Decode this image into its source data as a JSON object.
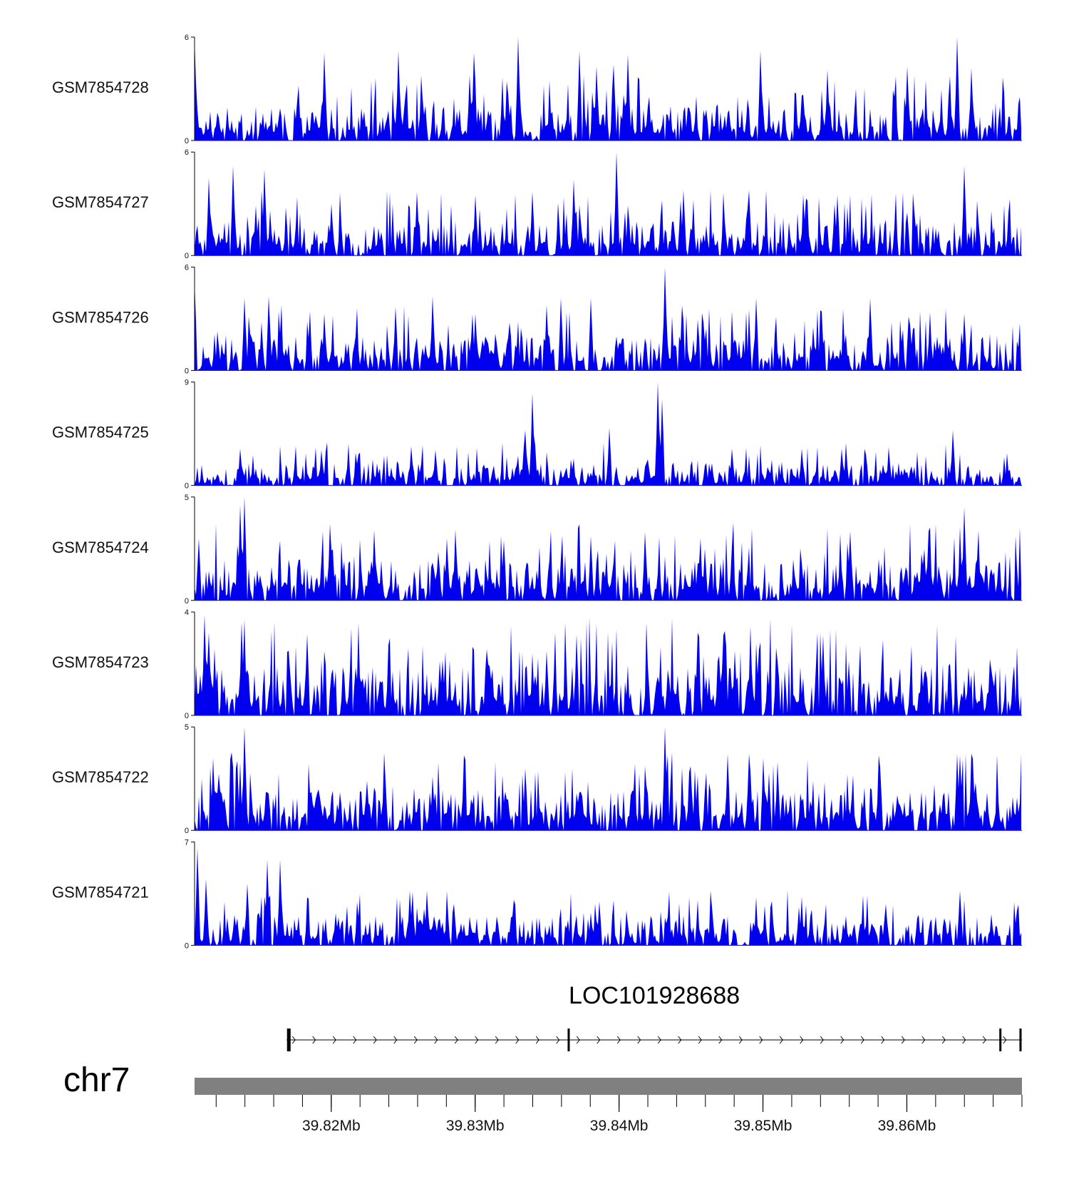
{
  "chart_data": {
    "type": "area",
    "title": "",
    "fill_color": "#0000ee",
    "region": {
      "chromosome": "chr7",
      "start_mb": 39.8105,
      "end_mb": 39.868
    },
    "xlabel": "",
    "xticks": [
      {
        "mb": 39.82,
        "label": "39.82Mb"
      },
      {
        "mb": 39.83,
        "label": "39.83Mb"
      },
      {
        "mb": 39.84,
        "label": "39.84Mb"
      },
      {
        "mb": 39.85,
        "label": "39.85Mb"
      },
      {
        "mb": 39.86,
        "label": "39.86Mb"
      }
    ],
    "minor_tick_step_mb": 0.002,
    "tracks": [
      {
        "name": "GSM7854728",
        "ymax": 6,
        "ymax_label": "6",
        "ymin_label": "0",
        "seed": 11,
        "peaks": [
          [
            39.8105,
            6
          ],
          [
            39.8195,
            5.1
          ],
          [
            39.8247,
            5.2
          ],
          [
            39.8299,
            5.1
          ],
          [
            39.8296,
            3.8
          ],
          [
            39.833,
            6
          ],
          [
            39.8372,
            5.2
          ],
          [
            39.8384,
            4.3
          ],
          [
            39.8406,
            5
          ],
          [
            39.8396,
            4.4
          ],
          [
            39.8498,
            5.2
          ],
          [
            39.8545,
            4.1
          ],
          [
            39.86,
            4.3
          ],
          [
            39.8635,
            6
          ],
          [
            39.8645,
            4.2
          ]
        ]
      },
      {
        "name": "GSM7854727",
        "ymax": 6,
        "ymax_label": "6",
        "ymin_label": "0",
        "seed": 23,
        "peaks": [
          [
            39.8115,
            4.5
          ],
          [
            39.8132,
            5.2
          ],
          [
            39.8154,
            5
          ],
          [
            39.82,
            3
          ],
          [
            39.826,
            3.7
          ],
          [
            39.83,
            3.5
          ],
          [
            39.834,
            3.7
          ],
          [
            39.8368,
            4.4
          ],
          [
            39.8398,
            6
          ],
          [
            39.8445,
            3.8
          ],
          [
            39.849,
            3.7
          ],
          [
            39.855,
            3
          ],
          [
            39.86,
            2.5
          ],
          [
            39.864,
            5.2
          ]
        ]
      },
      {
        "name": "GSM7854726",
        "ymax": 6,
        "ymax_label": "6",
        "ymin_label": "0",
        "seed": 37,
        "peaks": [
          [
            39.8105,
            5.2
          ],
          [
            39.814,
            4.2
          ],
          [
            39.8157,
            4.3
          ],
          [
            39.8195,
            3.3
          ],
          [
            39.8245,
            3.7
          ],
          [
            39.827,
            4.3
          ],
          [
            39.83,
            3.3
          ],
          [
            39.835,
            3.8
          ],
          [
            39.836,
            4.2
          ],
          [
            39.838,
            4.2
          ],
          [
            39.8432,
            6
          ],
          [
            39.8495,
            4.2
          ],
          [
            39.8535,
            2.5
          ],
          [
            39.8575,
            4.2
          ],
          [
            39.864,
            3.3
          ]
        ]
      },
      {
        "name": "GSM7854725",
        "ymax": 9,
        "ymax_label": "9",
        "ymin_label": "0",
        "seed": 53,
        "peaks": [
          [
            39.8137,
            3.2
          ],
          [
            39.8193,
            3.1
          ],
          [
            39.8256,
            3.4
          ],
          [
            39.8272,
            3.1
          ],
          [
            39.8335,
            4.8
          ],
          [
            39.834,
            8
          ],
          [
            39.8393,
            5
          ],
          [
            39.8427,
            9
          ],
          [
            39.843,
            7.5
          ],
          [
            39.8478,
            3.2
          ],
          [
            39.8527,
            3.2
          ],
          [
            39.8555,
            3.2
          ],
          [
            39.8632,
            4.8
          ]
        ]
      },
      {
        "name": "GSM7854724",
        "ymax": 5,
        "ymax_label": "5",
        "ymin_label": "0",
        "seed": 71,
        "peaks": [
          [
            39.8137,
            4.6
          ],
          [
            39.814,
            5
          ],
          [
            39.8199,
            3.7
          ],
          [
            39.823,
            3.4
          ],
          [
            39.828,
            3
          ],
          [
            39.832,
            2.9
          ],
          [
            39.838,
            3.1
          ],
          [
            39.8418,
            3.3
          ],
          [
            39.846,
            2.5
          ],
          [
            39.8478,
            2.6
          ],
          [
            39.858,
            2
          ],
          [
            39.864,
            4.5
          ]
        ]
      },
      {
        "name": "GSM7854723",
        "ymax": 4,
        "ymax_label": "4",
        "ymin_label": "0",
        "seed": 89,
        "peaks": [
          [
            39.8112,
            3.9
          ],
          [
            39.8115,
            3.2
          ],
          [
            39.8138,
            3.6
          ],
          [
            39.817,
            2.5
          ],
          [
            39.824,
            2.2
          ],
          [
            39.8275,
            2.1
          ],
          [
            39.831,
            1.9
          ],
          [
            39.835,
            2.5
          ],
          [
            39.842,
            1.9
          ],
          [
            39.847,
            2.3
          ],
          [
            39.848,
            2.5
          ],
          [
            39.851,
            2.1
          ],
          [
            39.856,
            2.1
          ],
          [
            39.861,
            2
          ],
          [
            39.863,
            2
          ]
        ]
      },
      {
        "name": "GSM7854722",
        "ymax": 5,
        "ymax_label": "5",
        "ymin_label": "0",
        "seed": 103,
        "peaks": [
          [
            39.8118,
            3.5
          ],
          [
            39.814,
            5
          ],
          [
            39.8225,
            2.4
          ],
          [
            39.827,
            2.6
          ],
          [
            39.8292,
            3.2
          ],
          [
            39.8335,
            3
          ],
          [
            39.837,
            1.8
          ],
          [
            39.8432,
            5
          ],
          [
            39.845,
            3.1
          ],
          [
            39.8475,
            3.7
          ],
          [
            39.849,
            3.7
          ],
          [
            39.85,
            3.5
          ],
          [
            39.851,
            3.3
          ],
          [
            39.8635,
            3.7
          ]
        ]
      },
      {
        "name": "GSM7854721",
        "ymax": 7,
        "ymax_label": "7",
        "ymin_label": "0",
        "seed": 131,
        "peaks": [
          [
            39.8107,
            6.6
          ],
          [
            39.8113,
            4.5
          ],
          [
            39.8142,
            4.2
          ],
          [
            39.8156,
            5.8
          ],
          [
            39.8164,
            5.8
          ],
          [
            39.8255,
            3.7
          ],
          [
            39.8266,
            3.7
          ],
          [
            39.8285,
            2.8
          ],
          [
            39.838,
            2.2
          ],
          [
            39.8465,
            2.6
          ],
          [
            39.8525,
            2.6
          ],
          [
            39.8585,
            2.8
          ],
          [
            39.8637,
            3.7
          ],
          [
            39.8659,
            2.1
          ]
        ]
      }
    ]
  },
  "gene": {
    "name": "LOC101928688",
    "start_mb": 39.8169,
    "end_mb": 39.868,
    "strand": "+",
    "exons_mb": [
      39.817,
      39.8171,
      39.8365,
      39.8665,
      39.8679
    ]
  },
  "chromosome_label": "chr7",
  "colors": {
    "signal": "#0000ee",
    "ideogram": "#808080",
    "axis": "#000000"
  }
}
